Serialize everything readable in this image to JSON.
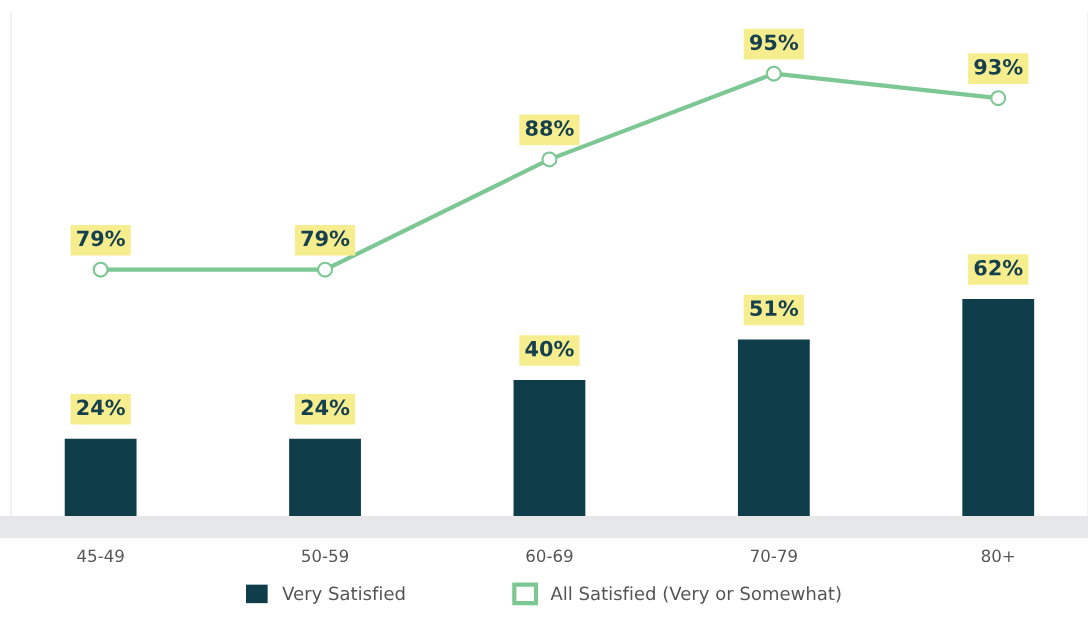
{
  "chart_data": {
    "type": "bar",
    "categories": [
      "45-49",
      "50-59",
      "60-69",
      "70-79",
      "80+"
    ],
    "series": [
      {
        "name": "Very Satisfied",
        "color": "#0f3d4a",
        "values": [
          24,
          24,
          40,
          51,
          62
        ],
        "value_labels": [
          "24%",
          "24%",
          "40%",
          "51%",
          "62%"
        ]
      },
      {
        "name": "All Satisfied (Very or Somewhat)",
        "type": "line",
        "axis": "y2",
        "color": "#7cc794",
        "marker": "circle",
        "values": [
          79,
          79,
          88,
          95,
          93
        ],
        "value_labels": [
          "79%",
          "79%",
          "88%",
          "95%",
          "93%"
        ]
      }
    ],
    "ylim": [
      0,
      140
    ],
    "y2lim": [
      58,
      100
    ],
    "tick_labels": "x",
    "legend": "bottom",
    "grid": false
  }
}
